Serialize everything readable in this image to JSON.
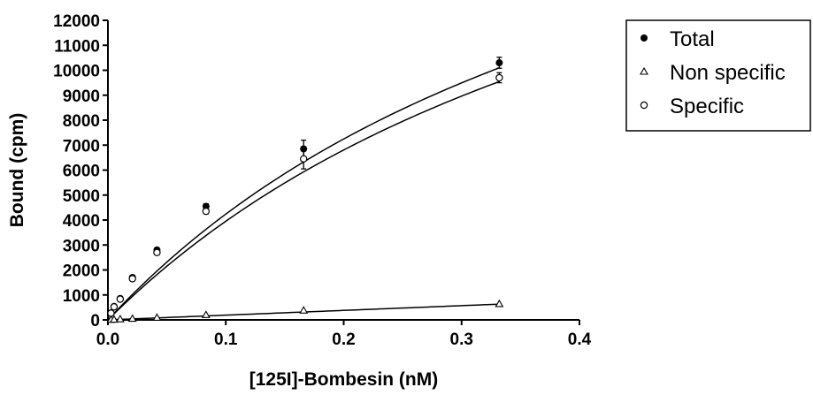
{
  "chart_data": {
    "type": "scatter",
    "xlabel": "[125I]-Bombesin (nM)",
    "ylabel": "Bound (cpm)",
    "xlim": [
      0,
      0.4
    ],
    "ylim": [
      0,
      12000
    ],
    "x_ticks": [
      "0.0",
      "0.1",
      "0.2",
      "0.3",
      "0.4"
    ],
    "y_ticks": [
      "0",
      "1000",
      "2000",
      "3000",
      "4000",
      "5000",
      "6000",
      "7000",
      "8000",
      "9000",
      "10000",
      "11000",
      "12000"
    ],
    "grid": false,
    "legend_position": "top-right",
    "series": [
      {
        "name": "Total",
        "marker": "filled-circle",
        "x": [
          0.0026,
          0.0052,
          0.0104,
          0.0208,
          0.0416,
          0.0832,
          0.166,
          0.332
        ],
        "y": [
          280,
          540,
          860,
          1700,
          2800,
          4550,
          6850,
          10300
        ],
        "error": [
          60,
          60,
          70,
          80,
          90,
          100,
          350,
          220
        ],
        "fit": {
          "model": "one-site",
          "bmax": 25000,
          "kd": 0.49
        }
      },
      {
        "name": "Non specific",
        "marker": "open-triangle",
        "x": [
          0.0026,
          0.0052,
          0.0104,
          0.0208,
          0.0416,
          0.0832,
          0.166,
          0.332
        ],
        "y": [
          10,
          15,
          30,
          50,
          90,
          200,
          380,
          640
        ],
        "error": [
          0,
          0,
          0,
          0,
          0,
          0,
          0,
          0
        ],
        "fit": {
          "model": "linear",
          "slope": 1900
        }
      },
      {
        "name": "Specific",
        "marker": "open-circle",
        "x": [
          0.0026,
          0.0052,
          0.0104,
          0.0208,
          0.0416,
          0.0832,
          0.166,
          0.332
        ],
        "y": [
          270,
          520,
          830,
          1650,
          2700,
          4350,
          6450,
          9700
        ],
        "error": [
          60,
          60,
          70,
          80,
          90,
          100,
          400,
          200
        ],
        "fit": {
          "model": "one-site",
          "bmax": 24500,
          "kd": 0.52
        }
      }
    ]
  }
}
